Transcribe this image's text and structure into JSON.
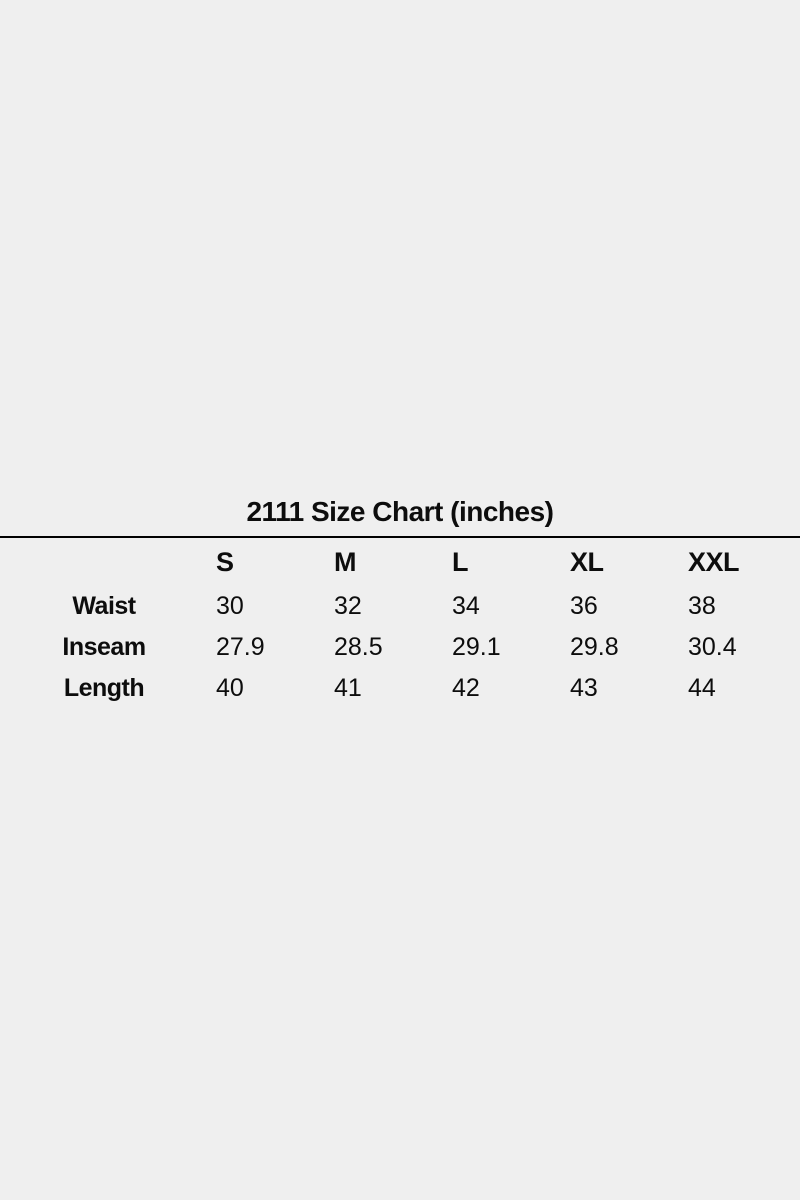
{
  "page": {
    "background_color": "#efefef",
    "text_color": "#0d0d0d",
    "rule_color": "#000000"
  },
  "chart_data": {
    "type": "table",
    "title": "2111 Size Chart (inches)",
    "columns": [
      "S",
      "M",
      "L",
      "XL",
      "XXL"
    ],
    "rows": [
      {
        "label": "Waist",
        "values": [
          "30",
          "32",
          "34",
          "36",
          "38"
        ]
      },
      {
        "label": "Inseam",
        "values": [
          "27.9",
          "28.5",
          "29.1",
          "29.8",
          "30.4"
        ]
      },
      {
        "label": "Length",
        "values": [
          "40",
          "41",
          "42",
          "43",
          "44"
        ]
      }
    ]
  }
}
